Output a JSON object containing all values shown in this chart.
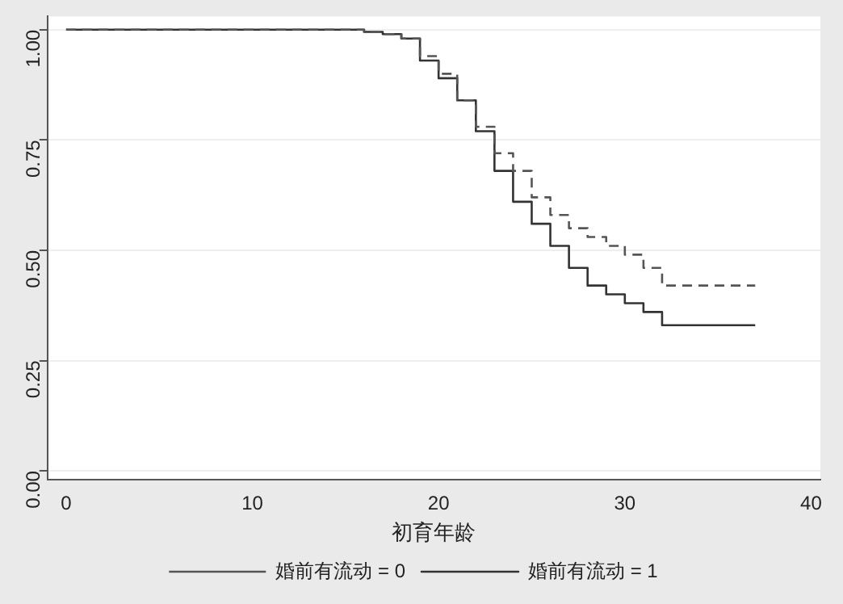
{
  "chart_data": {
    "type": "step",
    "xlabel": "初育年龄",
    "xlim": [
      -1,
      40.5
    ],
    "xticks": [
      0,
      10,
      20,
      30,
      40
    ],
    "ylim": [
      -0.02,
      1.03
    ],
    "yticks": [
      {
        "value": 0,
        "label": "0.00"
      },
      {
        "value": 0.25,
        "label": "0.25"
      },
      {
        "value": 0.5,
        "label": "0.50"
      },
      {
        "value": 0.75,
        "label": "0.75"
      },
      {
        "value": 1,
        "label": "1.00"
      }
    ],
    "grid": "y",
    "legend": "bottom",
    "series": [
      {
        "name": "婚前有流动 = 0",
        "color": "#555555",
        "line_style": "dashed",
        "x": [
          0,
          16,
          17,
          18,
          19,
          20,
          21,
          22,
          23,
          24,
          25,
          26,
          27,
          28,
          29,
          30,
          31,
          32,
          37
        ],
        "values": [
          1,
          0.995,
          0.99,
          0.98,
          0.94,
          0.9,
          0.84,
          0.78,
          0.72,
          0.68,
          0.62,
          0.58,
          0.55,
          0.53,
          0.51,
          0.49,
          0.46,
          0.42,
          0.42
        ]
      },
      {
        "name": "婚前有流动 = 1",
        "color": "#333333",
        "line_style": "solid",
        "x": [
          0,
          16,
          17,
          18,
          19,
          20,
          21,
          22,
          23,
          24,
          25,
          26,
          27,
          28,
          29,
          30,
          31,
          32,
          37
        ],
        "values": [
          1,
          0.995,
          0.99,
          0.98,
          0.93,
          0.89,
          0.84,
          0.77,
          0.68,
          0.61,
          0.56,
          0.51,
          0.46,
          0.42,
          0.4,
          0.38,
          0.36,
          0.33,
          0.33
        ]
      }
    ]
  }
}
